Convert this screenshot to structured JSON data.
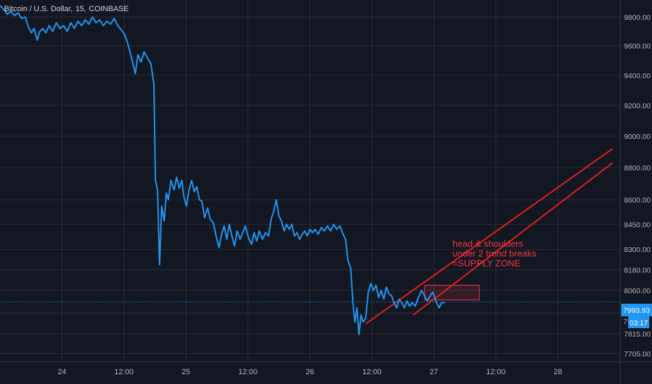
{
  "symbol": {
    "name": "Bitcoin / U.S. Dollar",
    "interval": "15",
    "exchange": "COINBASE"
  },
  "price_label": {
    "value": "7993.93",
    "countdown": "03:17",
    "hidden_partial": "79"
  },
  "colors": {
    "background": "#131722",
    "grid": "#2a2e39",
    "price_line": "#2196f3",
    "trendline": "#e0201b",
    "annotation_text": "#f23645",
    "axis_text": "#b2b5be"
  },
  "chart_data": {
    "type": "line",
    "title": "Bitcoin / U.S. Dollar, 15, COINBASE",
    "xlabel": "",
    "ylabel": "",
    "y_scale": "log",
    "ylim": [
      7660,
      9920
    ],
    "x_range_hours": [
      -12,
      108
    ],
    "x_ticks": [
      {
        "label": "24",
        "hour": 0
      },
      {
        "label": "12:00",
        "hour": 12
      },
      {
        "label": "25",
        "hour": 24
      },
      {
        "label": "12:00",
        "hour": 36
      },
      {
        "label": "26",
        "hour": 48
      },
      {
        "label": "12:00",
        "hour": 60
      },
      {
        "label": "27",
        "hour": 72
      },
      {
        "label": "12:00",
        "hour": 84
      },
      {
        "label": "28",
        "hour": 96
      }
    ],
    "y_ticks": [
      7705,
      7815,
      7930,
      8060,
      8180,
      8300,
      8450,
      8600,
      8800,
      9000,
      9200,
      9400,
      9600,
      9800
    ],
    "y_tick_labels": [
      "7705.00",
      "7815.00",
      "",
      "8060.00",
      "8180.00",
      "8300.00",
      "8450.00",
      "8600.00",
      "8800.00",
      "9000.00",
      "9200.00",
      "9400.00",
      "9600.00",
      "9800.00"
    ],
    "grid": true,
    "series": [
      {
        "points": [
          [
            -12.0,
            9880
          ],
          [
            -11.3,
            9855
          ],
          [
            -10.6,
            9820
          ],
          [
            -9.9,
            9840
          ],
          [
            -9.2,
            9810
          ],
          [
            -8.5,
            9830
          ],
          [
            -7.8,
            9790
          ],
          [
            -7.1,
            9800
          ],
          [
            -6.5,
            9730
          ],
          [
            -5.9,
            9690
          ],
          [
            -5.4,
            9720
          ],
          [
            -4.8,
            9640
          ],
          [
            -4.3,
            9700
          ],
          [
            -3.7,
            9720
          ],
          [
            -3.1,
            9690
          ],
          [
            -2.5,
            9740
          ],
          [
            -1.8,
            9700
          ],
          [
            -1.1,
            9760
          ],
          [
            -0.4,
            9720
          ],
          [
            0.3,
            9740
          ],
          [
            1.0,
            9700
          ],
          [
            1.7,
            9760
          ],
          [
            2.4,
            9720
          ],
          [
            3.1,
            9770
          ],
          [
            3.8,
            9740
          ],
          [
            4.5,
            9780
          ],
          [
            5.2,
            9750
          ],
          [
            5.9,
            9800
          ],
          [
            6.6,
            9760
          ],
          [
            7.3,
            9780
          ],
          [
            8.0,
            9740
          ],
          [
            8.7,
            9770
          ],
          [
            9.4,
            9750
          ],
          [
            10.1,
            9790
          ],
          [
            10.8,
            9740
          ],
          [
            11.5,
            9710
          ],
          [
            12.1,
            9680
          ],
          [
            12.7,
            9620
          ],
          [
            13.3,
            9540
          ],
          [
            13.8,
            9470
          ],
          [
            14.2,
            9410
          ],
          [
            14.7,
            9540
          ],
          [
            15.3,
            9490
          ],
          [
            15.9,
            9560
          ],
          [
            16.5,
            9520
          ],
          [
            17.2,
            9480
          ],
          [
            17.8,
            9340
          ],
          [
            18.1,
            8720
          ],
          [
            18.5,
            8660
          ],
          [
            18.9,
            8210
          ],
          [
            19.3,
            8560
          ],
          [
            19.8,
            8470
          ],
          [
            20.2,
            8640
          ],
          [
            20.6,
            8600
          ],
          [
            21.1,
            8720
          ],
          [
            21.7,
            8660
          ],
          [
            22.2,
            8740
          ],
          [
            22.7,
            8670
          ],
          [
            23.2,
            8720
          ],
          [
            23.6,
            8620
          ],
          [
            24.1,
            8560
          ],
          [
            24.6,
            8660
          ],
          [
            25.1,
            8720
          ],
          [
            25.6,
            8650
          ],
          [
            26.1,
            8680
          ],
          [
            26.6,
            8600
          ],
          [
            27.1,
            8590
          ],
          [
            27.6,
            8490
          ],
          [
            28.2,
            8550
          ],
          [
            28.7,
            8480
          ],
          [
            29.3,
            8460
          ],
          [
            29.9,
            8370
          ],
          [
            30.4,
            8310
          ],
          [
            30.9,
            8390
          ],
          [
            31.4,
            8440
          ],
          [
            31.9,
            8360
          ],
          [
            32.4,
            8450
          ],
          [
            32.9,
            8380
          ],
          [
            33.4,
            8320
          ],
          [
            33.9,
            8410
          ],
          [
            34.5,
            8360
          ],
          [
            35.0,
            8400
          ],
          [
            35.5,
            8440
          ],
          [
            36.1,
            8370
          ],
          [
            36.7,
            8330
          ],
          [
            37.2,
            8400
          ],
          [
            37.7,
            8350
          ],
          [
            38.2,
            8410
          ],
          [
            38.8,
            8360
          ],
          [
            39.4,
            8400
          ],
          [
            40.0,
            8380
          ],
          [
            40.5,
            8480
          ],
          [
            41.0,
            8530
          ],
          [
            41.5,
            8600
          ],
          [
            42.0,
            8500
          ],
          [
            42.5,
            8470
          ],
          [
            43.0,
            8410
          ],
          [
            43.5,
            8450
          ],
          [
            44.0,
            8420
          ],
          [
            44.5,
            8450
          ],
          [
            45.0,
            8380
          ],
          [
            45.5,
            8400
          ],
          [
            46.0,
            8360
          ],
          [
            46.5,
            8390
          ],
          [
            47.0,
            8410
          ],
          [
            47.5,
            8380
          ],
          [
            48.0,
            8420
          ],
          [
            48.5,
            8400
          ],
          [
            49.0,
            8420
          ],
          [
            49.6,
            8390
          ],
          [
            50.2,
            8430
          ],
          [
            50.8,
            8410
          ],
          [
            51.4,
            8440
          ],
          [
            52.0,
            8410
          ],
          [
            52.6,
            8450
          ],
          [
            53.2,
            8420
          ],
          [
            53.8,
            8440
          ],
          [
            54.3,
            8400
          ],
          [
            54.9,
            8360
          ],
          [
            55.4,
            8230
          ],
          [
            55.9,
            8190
          ],
          [
            56.3,
            8000
          ],
          [
            56.7,
            7880
          ],
          [
            57.1,
            7960
          ],
          [
            57.5,
            7810
          ],
          [
            57.9,
            7920
          ],
          [
            58.3,
            7880
          ],
          [
            58.8,
            7900
          ],
          [
            59.3,
            8050
          ],
          [
            59.8,
            8100
          ],
          [
            60.3,
            8060
          ],
          [
            60.8,
            8090
          ],
          [
            61.3,
            8020
          ],
          [
            61.8,
            8060
          ],
          [
            62.3,
            8010
          ],
          [
            62.8,
            8080
          ],
          [
            63.3,
            8040
          ],
          [
            63.8,
            8030
          ],
          [
            64.3,
            7990
          ],
          [
            64.8,
            7960
          ],
          [
            65.3,
            8010
          ],
          [
            65.8,
            7990
          ],
          [
            66.3,
            7960
          ],
          [
            66.8,
            8000
          ],
          [
            67.3,
            7970
          ],
          [
            67.8,
            7990
          ],
          [
            68.4,
            7970
          ],
          [
            69.0,
            8020
          ],
          [
            69.6,
            8060
          ],
          [
            70.2,
            8030
          ],
          [
            70.7,
            8000
          ],
          [
            71.3,
            8030
          ],
          [
            71.8,
            8050
          ],
          [
            72.4,
            8000
          ],
          [
            73.0,
            7960
          ],
          [
            73.5,
            7990
          ],
          [
            74.1,
            7990
          ]
        ]
      }
    ],
    "trendlines": [
      {
        "points": [
          [
            58.8,
            7870
          ],
          [
            106.6,
            8920
          ]
        ]
      },
      {
        "points": [
          [
            68.0,
            7920
          ],
          [
            106.6,
            8830
          ]
        ]
      }
    ],
    "supply_zone": {
      "x_range": [
        70.2,
        80.8
      ],
      "y_range": [
        8005,
        8090
      ]
    },
    "annotation": {
      "lines": [
        "head & shoulders",
        "under 2 trend breaks",
        "=SUPPLY ZONE"
      ],
      "anchor": [
        75.6,
        8200
      ]
    }
  }
}
